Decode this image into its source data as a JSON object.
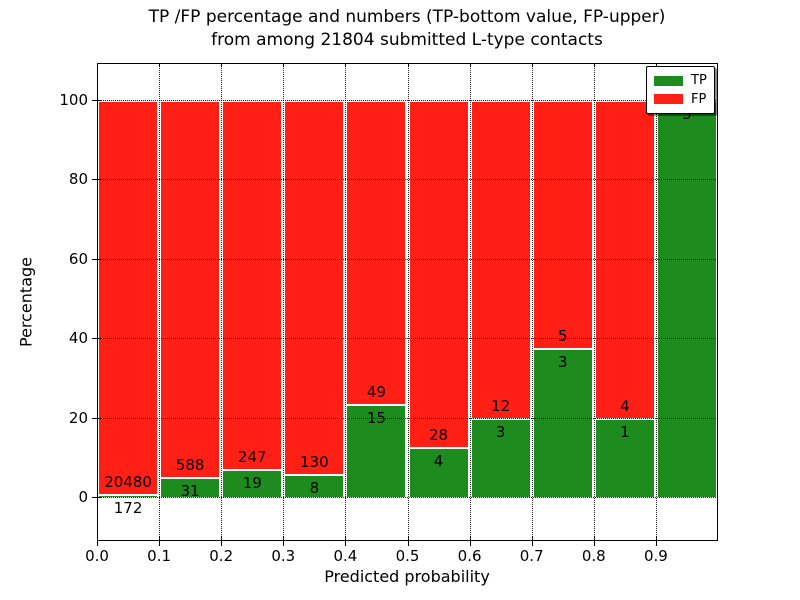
{
  "title": {
    "line1": "TP /FP percentage and numbers (TP-bottom value, FP-upper)",
    "line2": "from among 21804 submitted L-type contacts"
  },
  "axes": {
    "x_label": "Predicted probability",
    "y_label": "Percentage",
    "x_tick_labels": [
      "0.0",
      "0.1",
      "0.2",
      "0.3",
      "0.4",
      "0.5",
      "0.6",
      "0.7",
      "0.8",
      "0.9"
    ],
    "y_tick_labels": [
      "0",
      "20",
      "40",
      "60",
      "80",
      "100"
    ],
    "y_tick_values": [
      0,
      20,
      40,
      60,
      80,
      100
    ]
  },
  "legend": {
    "items": [
      {
        "label": "TP",
        "color": "#1e8b1e"
      },
      {
        "label": "FP",
        "color": "#ff1f15"
      }
    ]
  },
  "colors": {
    "tp_green": "#1e8b1e",
    "fp_red": "#ff1f15",
    "grid": "#000000",
    "background": "#ffffff"
  },
  "chart_data": {
    "type": "bar",
    "stacked": true,
    "normalized": "each bin scaled to 100%",
    "title": "TP /FP percentage and numbers (TP-bottom value, FP-upper) from among 21804 submitted L-type contacts",
    "xlabel": "Predicted probability",
    "ylabel": "Percentage",
    "xlim": [
      0.0,
      1.0
    ],
    "ylim": [
      -11,
      109
    ],
    "bin_width": 0.1,
    "total_submitted": 21804,
    "categories": [
      "0.0-0.1",
      "0.1-0.2",
      "0.2-0.3",
      "0.3-0.4",
      "0.4-0.5",
      "0.5-0.6",
      "0.6-0.7",
      "0.7-0.8",
      "0.8-0.9",
      "0.9-1.0"
    ],
    "series": [
      {
        "name": "TP",
        "color": "#1e8b1e",
        "counts": [
          172,
          31,
          19,
          8,
          15,
          4,
          3,
          3,
          1,
          5
        ]
      },
      {
        "name": "FP",
        "color": "#ff1f15",
        "counts": [
          20480,
          588,
          247,
          130,
          49,
          28,
          12,
          5,
          4,
          0
        ]
      }
    ],
    "tp_percent": [
      0.83,
      5.01,
      7.14,
      5.8,
      23.44,
      12.5,
      20.0,
      37.5,
      20.0,
      100.0
    ],
    "grid": "dotted, both axes, drawn over bars",
    "legend_position": "upper right"
  }
}
